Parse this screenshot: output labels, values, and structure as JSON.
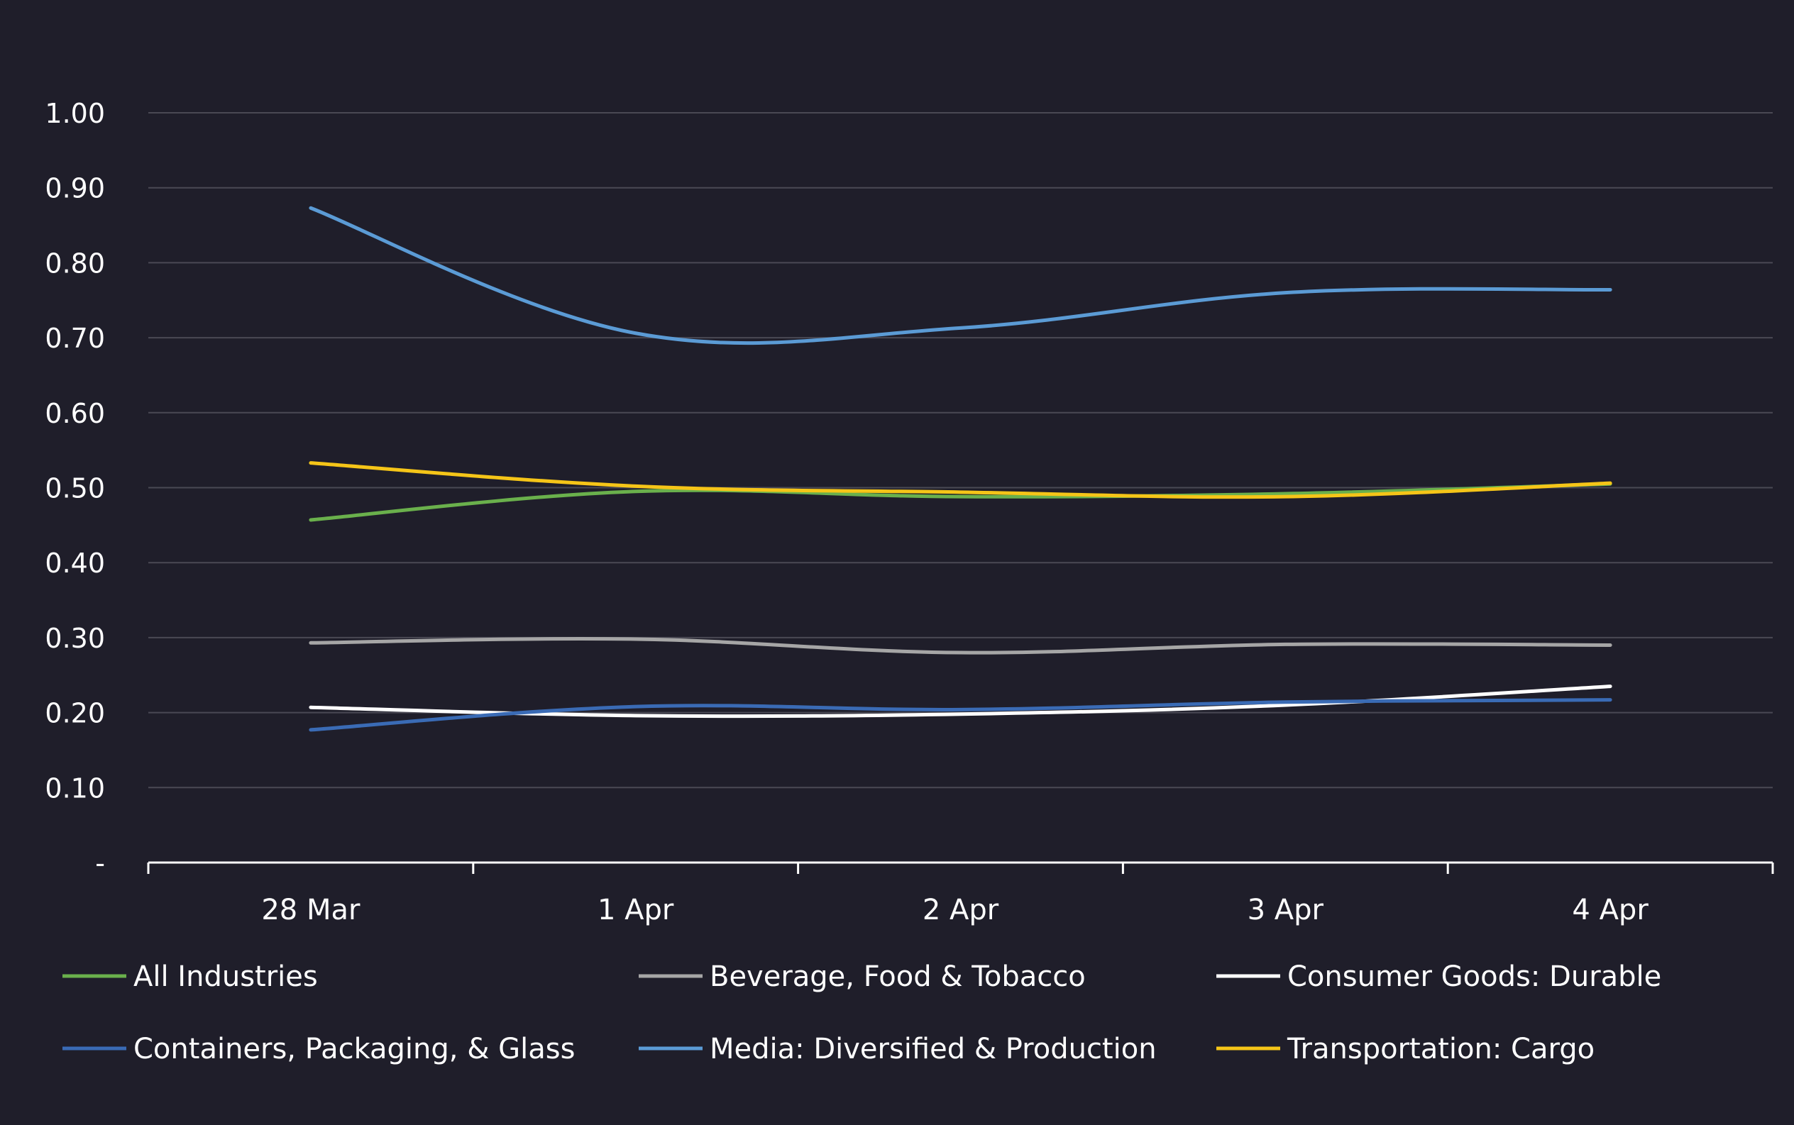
{
  "chart_data": {
    "type": "line",
    "title": "",
    "xlabel": "",
    "ylabel": "",
    "categories": [
      "28 Mar",
      "1 Apr",
      "2 Apr",
      "3 Apr",
      "4 Apr"
    ],
    "ylim": [
      0,
      1.0
    ],
    "yticks": [
      0,
      0.1,
      0.2,
      0.3,
      0.4,
      0.5,
      0.6,
      0.7,
      0.8,
      0.9,
      1.0
    ],
    "ytick_labels": [
      "-",
      "0.10",
      "0.20",
      "0.30",
      "0.40",
      "0.50",
      "0.60",
      "0.70",
      "0.80",
      "0.90",
      "1.00"
    ],
    "grid": true,
    "legend_position": "bottom",
    "series": [
      {
        "name": "All Industries",
        "color": "#6ab04c",
        "values": [
          0.457,
          0.495,
          0.488,
          0.492,
          0.505
        ]
      },
      {
        "name": "Beverage, Food & Tobacco",
        "color": "#a6a6a6",
        "values": [
          0.293,
          0.298,
          0.28,
          0.291,
          0.29
        ]
      },
      {
        "name": "Consumer Goods: Durable",
        "color": "#ffffff",
        "values": [
          0.207,
          0.196,
          0.198,
          0.21,
          0.235
        ]
      },
      {
        "name": "Containers, Packaging, & Glass",
        "color": "#3a6bb5",
        "values": [
          0.177,
          0.208,
          0.204,
          0.214,
          0.217
        ]
      },
      {
        "name": "Media: Diversified & Production",
        "color": "#5b9bd5",
        "values": [
          0.873,
          0.706,
          0.713,
          0.76,
          0.764
        ]
      },
      {
        "name": "Transportation: Cargo",
        "color": "#f5c518",
        "values": [
          0.533,
          0.502,
          0.494,
          0.488,
          0.506
        ]
      }
    ]
  }
}
